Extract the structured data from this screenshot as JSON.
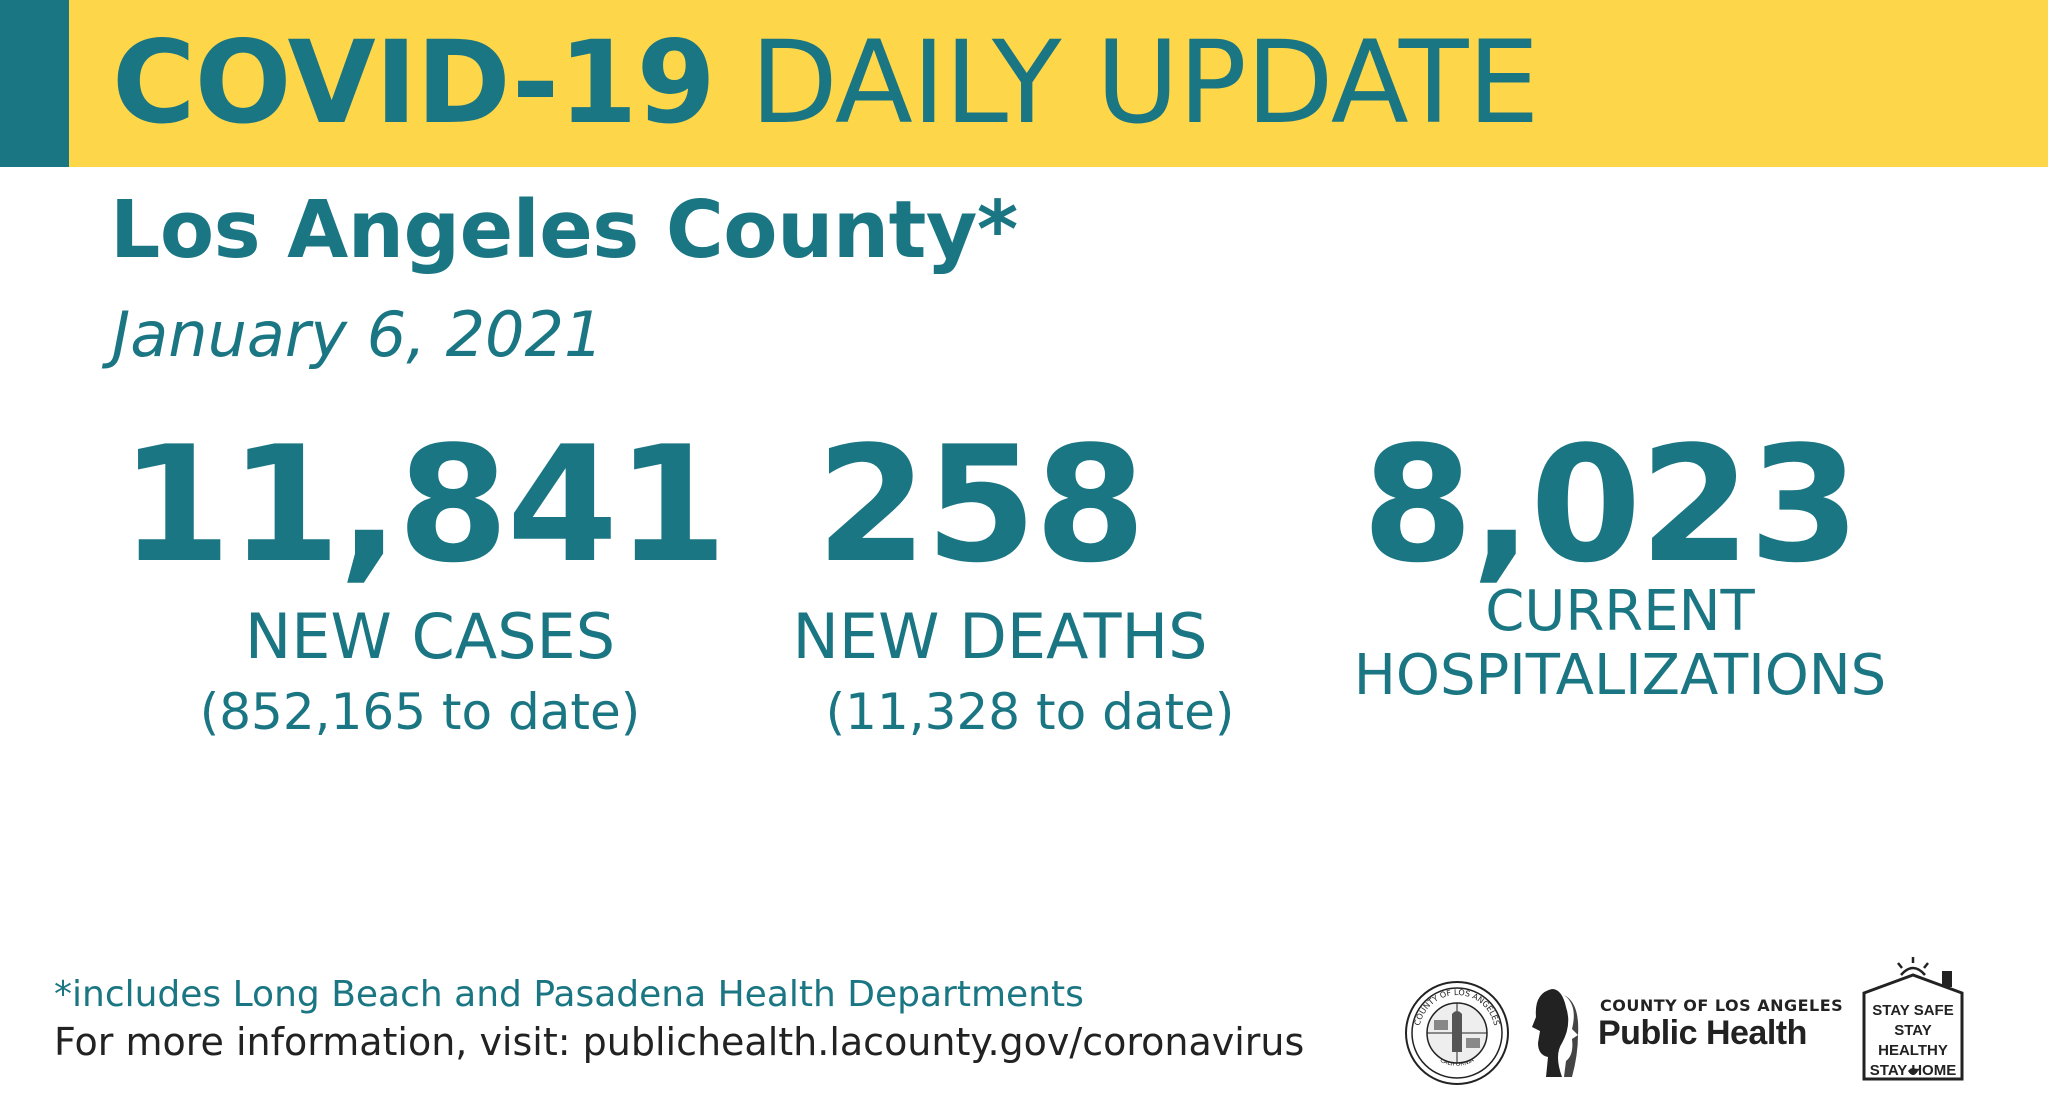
{
  "banner": {
    "title_bold": "COVID-19",
    "title_rest": "DAILY UPDATE"
  },
  "header": {
    "county": "Los Angeles County*",
    "date": "January 6, 2021"
  },
  "stats": {
    "cases": {
      "value": "11,841",
      "label": "NEW CASES",
      "sub": "(852,165 to date)"
    },
    "deaths": {
      "value": "258",
      "label": "NEW DEATHS",
      "sub": "(11,328 to date)"
    },
    "hosp": {
      "value": "8,023",
      "label_line1": "CURRENT",
      "label_line2": "HOSPITALIZATIONS"
    }
  },
  "footer": {
    "footnote": "*includes Long Beach and Pasadena Health Departments",
    "info": "For more information, visit: publichealth.lacounty.gov/coronavirus"
  },
  "logos": {
    "seal_top": "COUNTY OF LOS ANGELES",
    "seal_bottom": "CALIFORNIA",
    "ph_small": "COUNTY OF LOS ANGELES",
    "ph_big": "Public Health",
    "safe_line1": "STAY SAFE",
    "safe_line2": "STAY HEALTHY",
    "safe_line3": "STAY HOME"
  },
  "colors": {
    "teal": "#1b7683",
    "yellow": "#fdd64a"
  }
}
